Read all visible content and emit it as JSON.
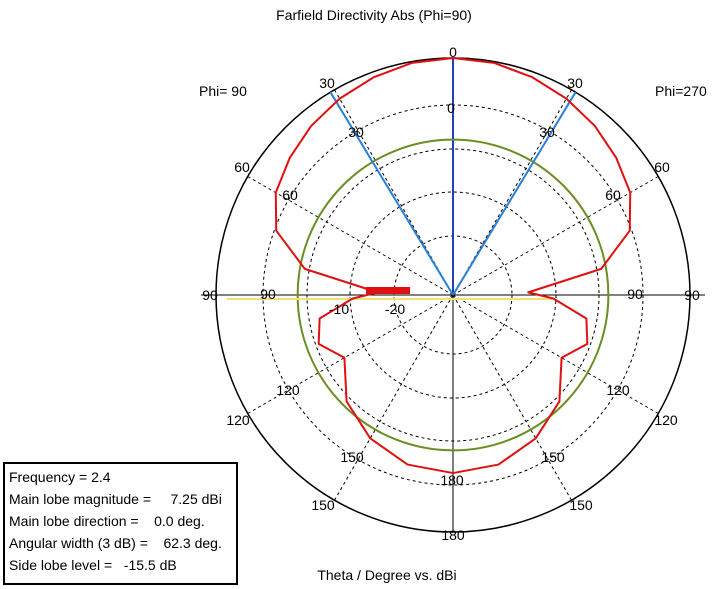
{
  "chart_data": {
    "type": "polar",
    "title": "Farfield Directivity Abs (Phi=90)",
    "xlabel": "Theta / Degree vs. dBi",
    "left_half_label": "Phi= 90",
    "right_half_label": "Phi=270",
    "outer_angle_labels": [
      "0",
      "30",
      "60",
      "90",
      "120",
      "150",
      "180"
    ],
    "inner_angle_labels": [
      "0",
      "30",
      "60",
      "90",
      "120",
      "150",
      "180"
    ],
    "radial_tick_labels": [
      "-10",
      "-20"
    ],
    "radial_range_db": [
      -40,
      7.25
    ],
    "angle_lines_deg": [
      0,
      30,
      60,
      90,
      120,
      150,
      180
    ],
    "series": [
      {
        "role": "directivity_pattern",
        "color": "#e01010",
        "theta_deg": [
          0,
          10,
          20,
          30,
          40,
          50,
          60,
          70,
          80,
          88,
          92,
          100,
          110,
          120,
          135,
          150,
          165,
          180
        ],
        "directivity_dbi": [
          7.25,
          7.0,
          6.2,
          5.2,
          4.0,
          2.5,
          0.8,
          -2.5,
          -10,
          -25,
          -20,
          -13,
          -11.5,
          -15,
          -10,
          -7,
          -5,
          -4.5
        ]
      },
      {
        "role": "main_lobe_markers",
        "color": "#2a7fd8",
        "theta_deg": [
          -31.15,
          0,
          31.15
        ]
      },
      {
        "role": "minus_3db_reference_circle",
        "color": "#6b8e23",
        "level_dbi": 4.25
      },
      {
        "role": "side_lobe_reference_line",
        "color": "#f2e071",
        "level_dbi": -15.5
      }
    ]
  },
  "info": {
    "frequency": "Frequency = 2.4",
    "main_lobe_magnitude": "Main lobe magnitude =     7.25 dBi",
    "main_lobe_direction": "Main lobe direction =    0.0 deg.",
    "angular_width": "Angular width (3 dB) =    62.3 deg.",
    "side_lobe_level": "Side lobe level =   -15.5 dB"
  },
  "colors": {
    "pattern": "#e01010",
    "beam_lines": "#2a7fd8",
    "axis_zero": "#1f3fbf",
    "reference_circle": "#6b8e23",
    "side_lobe_line": "#f2e071",
    "grid": "#000000"
  }
}
